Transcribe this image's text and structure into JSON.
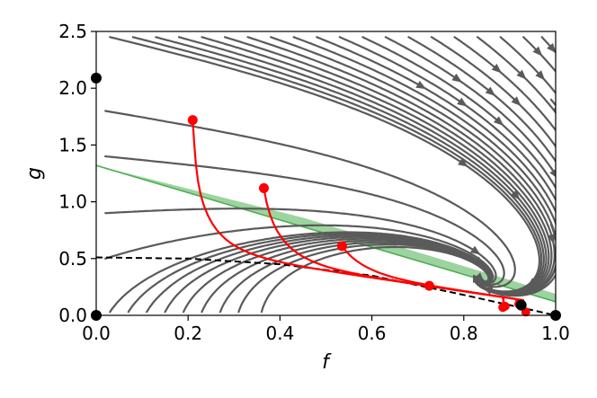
{
  "chart_data": {
    "type": "line",
    "title": "",
    "xlabel": "f",
    "ylabel": "g",
    "xlim": [
      0.0,
      1.0
    ],
    "ylim": [
      0.0,
      2.5
    ],
    "xticks": [
      0.0,
      0.2,
      0.4,
      0.6,
      0.8,
      1.0
    ],
    "xtick_labels": [
      "0.0",
      "0.2",
      "0.4",
      "0.6",
      "0.8",
      "1.0"
    ],
    "yticks": [
      0.0,
      0.5,
      1.0,
      1.5,
      2.0,
      2.5
    ],
    "ytick_labels": [
      "0.0",
      "0.5",
      "1.0",
      "1.5",
      "2.0",
      "2.5"
    ],
    "grid": false,
    "colors": {
      "streamlines": "#5a5a5a",
      "trajectories": "#ff0000",
      "band": "#4caf50",
      "nullcline": "#000000",
      "fixed_points": "#000000"
    },
    "stream_seeds": [
      [
        0.03,
        2.45
      ],
      [
        0.08,
        2.45
      ],
      [
        0.13,
        2.45
      ],
      [
        0.18,
        2.45
      ],
      [
        0.23,
        2.45
      ],
      [
        0.28,
        2.45
      ],
      [
        0.33,
        2.45
      ],
      [
        0.38,
        2.45
      ],
      [
        0.43,
        2.45
      ],
      [
        0.48,
        2.45
      ],
      [
        0.53,
        2.45
      ],
      [
        0.58,
        2.45
      ],
      [
        0.63,
        2.45
      ],
      [
        0.68,
        2.45
      ],
      [
        0.73,
        2.45
      ],
      [
        0.78,
        2.45
      ],
      [
        0.83,
        2.45
      ],
      [
        0.88,
        2.45
      ],
      [
        0.93,
        2.45
      ],
      [
        0.97,
        2.45
      ],
      [
        0.99,
        1.9
      ],
      [
        0.99,
        1.3
      ],
      [
        0.99,
        0.8
      ],
      [
        0.03,
        0.03
      ],
      [
        0.07,
        0.03
      ],
      [
        0.11,
        0.03
      ],
      [
        0.15,
        0.03
      ],
      [
        0.19,
        0.03
      ],
      [
        0.23,
        0.03
      ],
      [
        0.27,
        0.03
      ],
      [
        0.31,
        0.03
      ],
      [
        0.36,
        0.03
      ],
      [
        0.02,
        0.5
      ],
      [
        0.02,
        0.9
      ],
      [
        0.02,
        1.4
      ],
      [
        0.02,
        1.8
      ]
    ],
    "trajectories": [
      {
        "start": [
          0.21,
          1.72
        ],
        "end": [
          0.885,
          0.07
        ]
      },
      {
        "start": [
          0.365,
          1.12
        ],
        "end": [
          0.935,
          0.03
        ]
      },
      {
        "start": [
          0.535,
          0.61
        ],
        "end": [
          0.89,
          0.08
        ]
      },
      {
        "start": [
          0.725,
          0.26
        ],
        "end": [
          0.92,
          0.1
        ]
      }
    ],
    "band": {
      "lower": [
        [
          0.0,
          1.32
        ],
        [
          1.0,
          0.12
        ]
      ],
      "upper": [
        [
          0.45,
          0.86
        ],
        [
          1.0,
          0.19
        ]
      ]
    },
    "nullcline": [
      [
        0.0,
        0.51
      ],
      [
        0.2,
        0.5
      ],
      [
        0.4,
        0.45
      ],
      [
        0.6,
        0.35
      ],
      [
        0.8,
        0.18
      ],
      [
        0.9,
        0.09
      ],
      [
        1.0,
        0.0
      ]
    ],
    "fixed_points": [
      [
        0.0,
        2.09
      ],
      [
        0.0,
        0.0
      ],
      [
        0.925,
        0.09
      ],
      [
        1.0,
        0.0
      ]
    ]
  }
}
